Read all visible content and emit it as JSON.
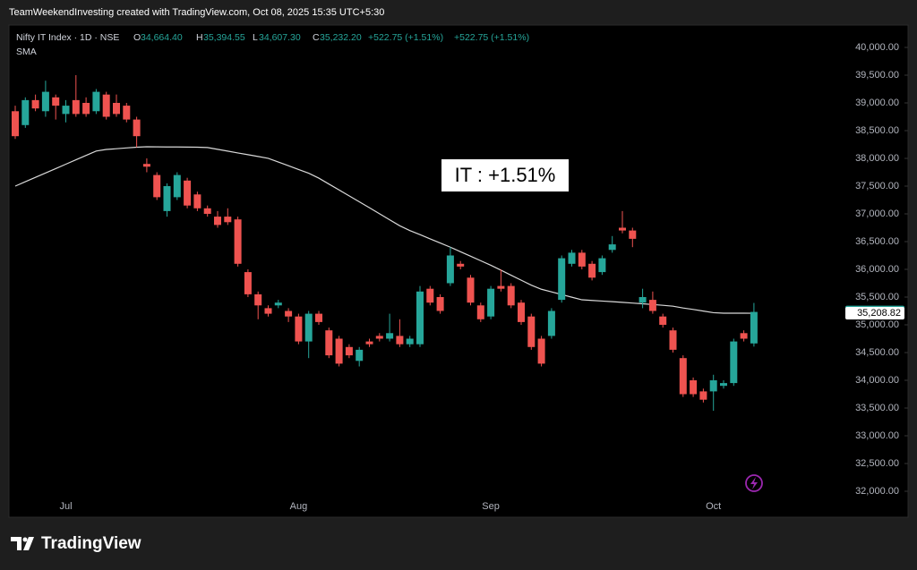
{
  "chart_data": {
    "type": "candlestick",
    "attribution": "TeamWeekendInvesting created with TradingView.com, Oct 08, 2025 15:35 UTC+5:30",
    "symbol": "Nifty IT Index · 1D · NSE",
    "ohlc_header": {
      "open": {
        "prefix": "O",
        "value": 34664.4,
        "label": "34,664.40"
      },
      "high": {
        "prefix": "H",
        "value": 35394.55,
        "label": "35,394.55"
      },
      "low": {
        "prefix": "L",
        "value": 34607.3,
        "label": "34,607.30"
      },
      "close": {
        "prefix": "C",
        "value": 35232.2,
        "label": "35,232.20"
      },
      "change": "+522.75 (+1.51%)",
      "change_repeat": "+522.75 (+1.51%)"
    },
    "annotation": "IT : +1.51%",
    "watermark": "TradingView",
    "up_color": "#26a69a",
    "down_color": "#ef5350",
    "categories": [
      null,
      null,
      null,
      null,
      null,
      "Jul",
      null,
      null,
      null,
      null,
      null,
      null,
      null,
      null,
      null,
      null,
      null,
      null,
      null,
      null,
      null,
      null,
      null,
      null,
      null,
      null,
      null,
      null,
      "Aug",
      null,
      null,
      null,
      null,
      null,
      null,
      null,
      null,
      null,
      null,
      null,
      null,
      null,
      null,
      null,
      null,
      null,
      null,
      "Sep",
      null,
      null,
      null,
      null,
      null,
      null,
      null,
      null,
      null,
      null,
      null,
      null,
      null,
      null,
      null,
      null,
      null,
      null,
      null,
      null,
      null,
      "Oct",
      null,
      null,
      null,
      null
    ],
    "open": [
      38850,
      38600,
      39050,
      38850,
      39100,
      38800,
      39050,
      39000,
      38850,
      39150,
      39000,
      38950,
      38700,
      37900,
      37700,
      37050,
      37300,
      37600,
      37350,
      37100,
      36950,
      36950,
      36900,
      35950,
      35550,
      35300,
      35350,
      35250,
      35150,
      34700,
      35200,
      34900,
      34750,
      34600,
      34350,
      34700,
      34800,
      34750,
      34800,
      34650,
      34650,
      35650,
      35500,
      35750,
      36100,
      35850,
      35350,
      35150,
      35700,
      35700,
      35400,
      35150,
      34750,
      34800,
      35450,
      36100,
      36300,
      36100,
      35950,
      36350,
      36750,
      36700,
      35400,
      35450,
      35150,
      34900,
      34400,
      34000,
      33800,
      33800,
      33900,
      33950,
      34850,
      34664.4
    ],
    "high": [
      38950,
      39100,
      39150,
      39400,
      39150,
      39050,
      39500,
      39100,
      39250,
      39200,
      39150,
      39000,
      38750,
      38000,
      37750,
      37550,
      37750,
      37650,
      37400,
      37150,
      37050,
      37100,
      36950,
      36000,
      35600,
      35350,
      35450,
      35300,
      35200,
      35250,
      35250,
      34950,
      34800,
      34650,
      34600,
      34750,
      34850,
      35200,
      35100,
      34800,
      35700,
      35700,
      35550,
      36400,
      36150,
      35900,
      35400,
      35700,
      36000,
      35750,
      35450,
      35200,
      34800,
      35300,
      36250,
      36350,
      36350,
      36150,
      36250,
      36600,
      37050,
      36750,
      35650,
      35600,
      35200,
      34950,
      34450,
      34050,
      33850,
      34100,
      34000,
      34750,
      34900,
      35394.55
    ],
    "low": [
      38350,
      38550,
      38850,
      38750,
      38700,
      38650,
      38750,
      38750,
      38800,
      38700,
      38750,
      38650,
      38200,
      37750,
      37250,
      36950,
      37250,
      37100,
      37050,
      36950,
      36750,
      36800,
      36050,
      35500,
      35100,
      35150,
      35300,
      35050,
      34650,
      34400,
      35000,
      34400,
      34250,
      34400,
      34250,
      34600,
      34700,
      34700,
      34600,
      34600,
      34600,
      35350,
      35200,
      35700,
      36000,
      35350,
      35050,
      35100,
      35600,
      35300,
      35000,
      34550,
      34250,
      34750,
      35400,
      36050,
      36000,
      35800,
      35900,
      36300,
      36650,
      36400,
      35300,
      35200,
      34950,
      34500,
      33700,
      33700,
      33600,
      33450,
      33850,
      33900,
      34700,
      34607.3
    ],
    "close": [
      38400,
      39050,
      38900,
      39200,
      38950,
      38950,
      38800,
      38800,
      39200,
      38750,
      38800,
      38700,
      38400,
      37850,
      37300,
      37500,
      37700,
      37150,
      37100,
      37000,
      36800,
      36850,
      36100,
      35550,
      35350,
      35200,
      35400,
      35150,
      34700,
      35200,
      35050,
      34450,
      34300,
      34450,
      34550,
      34650,
      34750,
      34850,
      34650,
      34750,
      35600,
      35400,
      35250,
      36250,
      36050,
      35400,
      35100,
      35650,
      35650,
      35350,
      35050,
      34600,
      34300,
      35250,
      36200,
      36300,
      36050,
      35850,
      36200,
      36450,
      36700,
      36550,
      35500,
      35250,
      35000,
      34550,
      33750,
      33750,
      33650,
      34000,
      33950,
      34700,
      34750,
      35232.2
    ],
    "sma": {
      "name": "SMA",
      "color": "#d9d9d9",
      "values": [
        37500,
        37579,
        37658,
        37737,
        37816,
        37895,
        37974,
        38053,
        38132,
        38161,
        38174,
        38188,
        38201,
        38209,
        38208,
        38206,
        38205,
        38203,
        38201,
        38195,
        38163,
        38131,
        38098,
        38066,
        38034,
        38001,
        37935,
        37867,
        37800,
        37732,
        37644,
        37537,
        37431,
        37325,
        37218,
        37110,
        37002,
        36893,
        36785,
        36699,
        36625,
        36550,
        36475,
        36399,
        36318,
        36236,
        36155,
        36074,
        35985,
        35894,
        35804,
        35714,
        35641,
        35593,
        35546,
        35498,
        35451,
        35439,
        35428,
        35417,
        35405,
        35392,
        35379,
        35366,
        35352,
        35336,
        35303,
        35277,
        35248,
        35219,
        35210,
        35210,
        35209,
        35208.82
      ]
    },
    "price_tags": [
      {
        "value": 35232.2,
        "label": "35,232.20",
        "color": "#26a69a"
      },
      {
        "value": 35208.82,
        "label": "35,208.82",
        "color": "#ffffff"
      }
    ],
    "ylim": [
      31887,
      40403
    ],
    "yticks": [
      {
        "value": 32000,
        "label": "32,000.00"
      },
      {
        "value": 32500,
        "label": "32,500.00"
      },
      {
        "value": 33000,
        "label": "33,000.00"
      },
      {
        "value": 33500,
        "label": "33,500.00"
      },
      {
        "value": 34000,
        "label": "34,000.00"
      },
      {
        "value": 34500,
        "label": "34,500.00"
      },
      {
        "value": 35000,
        "label": "35,000.00"
      },
      {
        "value": 35500,
        "label": "35,500.00"
      },
      {
        "value": 36000,
        "label": "36,000.00"
      },
      {
        "value": 36500,
        "label": "36,500.00"
      },
      {
        "value": 37000,
        "label": "37,000.00"
      },
      {
        "value": 37500,
        "label": "37,500.00"
      },
      {
        "value": 38000,
        "label": "38,000.00"
      },
      {
        "value": 38500,
        "label": "38,500.00"
      },
      {
        "value": 39000,
        "label": "39,000.00"
      },
      {
        "value": 39500,
        "label": "39,500.00"
      },
      {
        "value": 40000,
        "label": "40,000.00"
      }
    ],
    "grid": false
  }
}
